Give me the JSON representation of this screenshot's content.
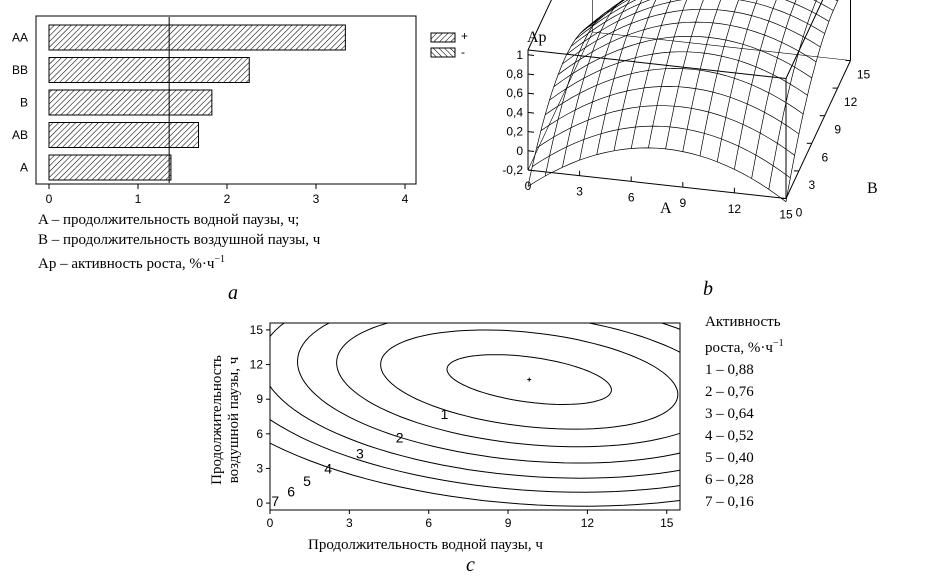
{
  "panel_labels": {
    "a": "a",
    "b": "b",
    "c": "c"
  },
  "legend_a": {
    "line1": "A  – продолжительность водной паузы, ч;",
    "line2": "B – продолжительность воздушной паузы, ч",
    "line3_main": "Ap – активность роста, %·ч",
    "line3_sup": "−1"
  },
  "legend_c": {
    "title1": "Активность",
    "title2": "роста, %·ч",
    "title2_sup": "−1",
    "items": [
      "1 – 0,88",
      "2 – 0,76",
      "3 – 0,64",
      "4 – 0,52",
      "5 – 0,40",
      "6 – 0,28",
      "7 – 0,16"
    ]
  },
  "chart_data": [
    {
      "type": "bar",
      "orientation": "horizontal",
      "categories": [
        "AA",
        "BB",
        "B",
        "AB",
        "A"
      ],
      "values": [
        3.33,
        2.25,
        1.83,
        1.68,
        1.37
      ],
      "xlim": [
        0,
        4
      ],
      "xticks": [
        "0",
        "1",
        "2",
        "3",
        "4"
      ],
      "reference_line": 1.35,
      "legend": [
        "+",
        "-"
      ],
      "legend_placement": "top-right outside"
    },
    {
      "type": "surface",
      "zlabel": "Ap",
      "xlabel": "A",
      "ylabel": "B",
      "xticks": [
        "0",
        "3",
        "6",
        "9",
        "12",
        "15"
      ],
      "yticks": [
        "0",
        "3",
        "6",
        "9",
        "12",
        "15"
      ],
      "zticks": [
        "-0,2",
        "0",
        "0,2",
        "0,4",
        "0,6",
        "0,8",
        "1"
      ],
      "zlim": [
        -0.2,
        1
      ],
      "peak": {
        "A": 9.8,
        "B": 10.7,
        "Ap": 0.93
      }
    },
    {
      "type": "contour",
      "xlabel": "Продолжительность водной паузы, ч",
      "ylabel_line1": "Продолжительность",
      "ylabel_line2": "воздушной паузы, ч",
      "xlim": [
        0,
        15.5
      ],
      "ylim": [
        -0.6,
        15.6
      ],
      "xticks": [
        "0",
        "3",
        "6",
        "9",
        "12",
        "15"
      ],
      "yticks": [
        "0",
        "3",
        "6",
        "9",
        "12",
        "15"
      ],
      "center": {
        "x": 9.8,
        "y": 10.7
      },
      "levels": [
        {
          "label": "1",
          "value": 0.88
        },
        {
          "label": "2",
          "value": 0.76
        },
        {
          "label": "3",
          "value": 0.64
        },
        {
          "label": "4",
          "value": 0.52
        },
        {
          "label": "5",
          "value": 0.4
        },
        {
          "label": "6",
          "value": 0.28
        },
        {
          "label": "7",
          "value": 0.16
        }
      ]
    }
  ]
}
